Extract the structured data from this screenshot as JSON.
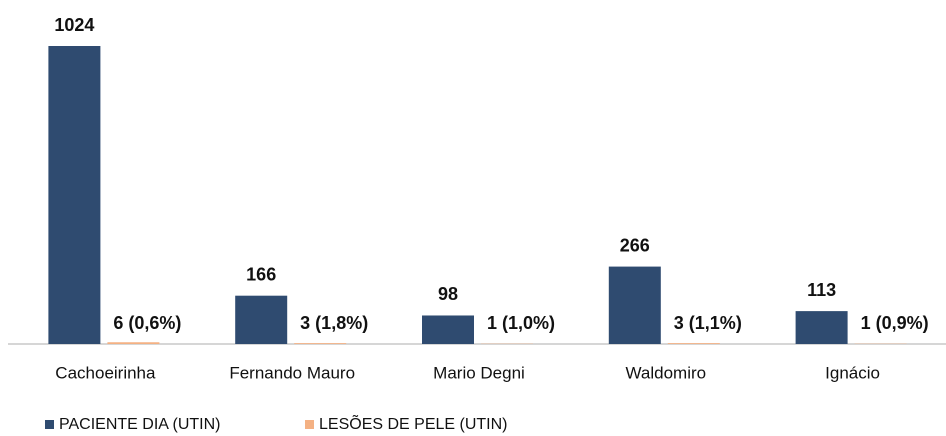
{
  "chart_data": {
    "type": "bar",
    "categories": [
      "Cachoeirinha",
      "Fernando Mauro",
      "Mario Degni",
      "Waldomiro",
      "Ignácio"
    ],
    "series": [
      {
        "name": "PACIENTE DIA (UTIN)",
        "color": "#2f4b70",
        "values": [
          1024,
          166,
          98,
          266,
          113
        ]
      },
      {
        "name": "LESÕES DE PELE (UTIN)",
        "color": "#f4b183",
        "values": [
          6,
          3,
          1,
          3,
          1
        ],
        "value_labels": [
          "6 (0,6%)",
          "3 (1,8%)",
          "1 (1,0%)",
          "3 (1,1%)",
          "1 (0,9%)"
        ]
      }
    ]
  }
}
